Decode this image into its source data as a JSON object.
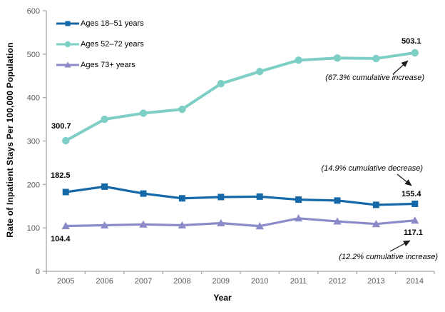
{
  "figure": {
    "y_axis_title": "Rate of Inpatient Stays Per 100,000 Population",
    "x_axis_title": "Year"
  },
  "chart_data": {
    "type": "line",
    "title": "",
    "xlabel": "Year",
    "ylabel": "Rate of Inpatient Stays Per 100,000 Population",
    "ylim": [
      0,
      600
    ],
    "y_ticks": [
      0,
      100,
      200,
      300,
      400,
      500,
      600
    ],
    "grid": false,
    "legend_position": "top-left-inside",
    "x": [
      "2005",
      "2006",
      "2007",
      "2008",
      "2009",
      "2010",
      "2011",
      "2012",
      "2013",
      "2014"
    ],
    "series": [
      {
        "name": "Ages 18–51 years",
        "marker": "square",
        "color": "#1568a8",
        "values": [
          182.5,
          195,
          179,
          168,
          171,
          172,
          165,
          163,
          153,
          155.4
        ]
      },
      {
        "name": "Ages 52–72 years",
        "marker": "circle",
        "color": "#7dcec5",
        "values": [
          300.7,
          350,
          364,
          373,
          432,
          460,
          486,
          491,
          490,
          503.1
        ]
      },
      {
        "name": "Ages 73+ years",
        "marker": "triangle",
        "color": "#8c8bc9",
        "values": [
          104.4,
          106,
          108,
          106,
          111,
          104,
          122,
          115,
          109,
          117.1
        ]
      }
    ],
    "point_labels": [
      {
        "series": "Ages 52–72 years",
        "x": "2005",
        "text": "300.7"
      },
      {
        "series": "Ages 18–51 years",
        "x": "2005",
        "text": "182.5"
      },
      {
        "series": "Ages 73+ years",
        "x": "2005",
        "text": "104.4"
      },
      {
        "series": "Ages 52–72 years",
        "x": "2014",
        "text": "503.1"
      },
      {
        "series": "Ages 18–51 years",
        "x": "2014",
        "text": "155.4"
      },
      {
        "series": "Ages 73+ years",
        "x": "2014",
        "text": "117.1"
      }
    ],
    "annotations": [
      {
        "text": "(67.3% cumulative increase)",
        "target_series": "Ages 52–72 years"
      },
      {
        "text": "(14.9% cumulative decrease)",
        "target_series": "Ages 18–51 years"
      },
      {
        "text": "(12.2% cumulative increase)",
        "target_series": "Ages 73+ years"
      }
    ],
    "axis_color": "#a6a6a6",
    "tick_label_color": "#595959"
  }
}
